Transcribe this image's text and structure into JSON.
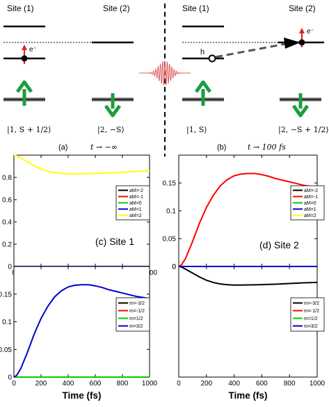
{
  "schematic": {
    "left": {
      "site1_label": "Site (1)",
      "site2_label": "Site (2)",
      "electron_label": "e⁻",
      "ket1_text": "|1, S + 1/2⟩",
      "ket2_text": "|2, −S⟩",
      "caption": "(a)",
      "time_text": "t → −∞"
    },
    "right": {
      "site1_label": "Site (1)",
      "site2_label": "Site (2)",
      "hole_label": "h",
      "electron_label": "e⁻",
      "ket1_text": "|1, S⟩",
      "ket2_text": "|2, −S + 1/2⟩",
      "caption": "(b)",
      "time_text": "t → 100 fs"
    },
    "colors": {
      "spin_arrow": "#1a9e3e",
      "electron_arrow": "#e02020",
      "pulse": "#e06060"
    }
  },
  "chart_data": [
    {
      "id": "site1-top",
      "type": "line",
      "annotation": "(c) Site 1",
      "xlim": [
        0,
        1000
      ],
      "ylim": [
        0,
        1.0
      ],
      "xticks": [
        "0",
        "200",
        "400",
        "600",
        "800",
        "1000"
      ],
      "yticks": [
        "0",
        "0.2",
        "0.4",
        "0.6",
        "0.8"
      ],
      "x": [
        0,
        20,
        50,
        100,
        150,
        200,
        250,
        300,
        350,
        400,
        450,
        500,
        550,
        600,
        650,
        700,
        750,
        800,
        850,
        900,
        950,
        1000
      ],
      "series": [
        {
          "name": "aM=-2",
          "color": "#000000",
          "values": [
            0,
            0,
            0,
            0,
            0,
            0,
            0,
            0,
            0,
            0,
            0,
            0,
            0,
            0,
            0,
            0,
            0,
            0,
            0,
            0,
            0,
            0
          ]
        },
        {
          "name": "aM=-1",
          "color": "#ff0000",
          "values": [
            0,
            0,
            0,
            0,
            0,
            0,
            0,
            0,
            0,
            0,
            0,
            0,
            0,
            0,
            0,
            0,
            0,
            0,
            0,
            0,
            0,
            0
          ]
        },
        {
          "name": "aM=0",
          "color": "#00cc00",
          "values": [
            0,
            0,
            0,
            0,
            0,
            0,
            0,
            0,
            0,
            0,
            0,
            0,
            0,
            0,
            0,
            0,
            0,
            0,
            0,
            0,
            0,
            0
          ]
        },
        {
          "name": "aM=1",
          "color": "#0000cc",
          "values": [
            0,
            0,
            0,
            0,
            0,
            0,
            0,
            0,
            0,
            0,
            0,
            0,
            0,
            0,
            0,
            0,
            0,
            0,
            0,
            0,
            0,
            0
          ]
        },
        {
          "name": "aM=2",
          "color": "#ffff00",
          "values": [
            1.0,
            0.995,
            0.975,
            0.94,
            0.905,
            0.875,
            0.855,
            0.842,
            0.835,
            0.832,
            0.832,
            0.833,
            0.834,
            0.836,
            0.838,
            0.84,
            0.843,
            0.846,
            0.85,
            0.853,
            0.856,
            0.86
          ]
        }
      ]
    },
    {
      "id": "site2-top",
      "type": "line",
      "annotation": "(d) Site 2",
      "xlim": [
        0,
        1000
      ],
      "ylim": [
        0,
        0.2
      ],
      "xticks": [
        "0",
        "200",
        "400",
        "600",
        "800",
        "1000"
      ],
      "yticks": [
        "0",
        "0.05",
        "0.1",
        "0.15"
      ],
      "x": [
        0,
        20,
        50,
        100,
        150,
        200,
        250,
        300,
        350,
        400,
        450,
        500,
        550,
        600,
        650,
        700,
        750,
        800,
        850,
        900,
        950,
        1000
      ],
      "series": [
        {
          "name": "aM=-2",
          "color": "#000000",
          "values": [
            0,
            0,
            0,
            0,
            0,
            0,
            0,
            0,
            0,
            0,
            0,
            0,
            0,
            0,
            0,
            0,
            0,
            0,
            0,
            0,
            0,
            0
          ]
        },
        {
          "name": "aM=-1",
          "color": "#ff0000",
          "values": [
            0,
            0.003,
            0.015,
            0.045,
            0.078,
            0.106,
            0.128,
            0.145,
            0.156,
            0.163,
            0.166,
            0.167,
            0.167,
            0.165,
            0.162,
            0.158,
            0.155,
            0.152,
            0.149,
            0.146,
            0.144,
            0.142
          ]
        },
        {
          "name": "aM=0",
          "color": "#00cc00",
          "values": [
            0,
            0,
            0,
            0,
            0,
            0,
            0,
            0,
            0,
            0,
            0,
            0,
            0,
            0,
            0,
            0,
            0,
            0,
            0,
            0,
            0,
            0
          ]
        },
        {
          "name": "aM=1",
          "color": "#0000cc",
          "values": [
            0,
            0,
            0,
            0,
            0,
            0,
            0,
            0,
            0,
            0,
            0,
            0,
            0,
            0,
            0,
            0,
            0,
            0,
            0,
            0,
            0,
            0
          ]
        },
        {
          "name": "aM=2",
          "color": "#ffff00",
          "values": [
            0,
            0,
            0,
            0,
            0,
            0,
            0,
            0,
            0,
            0,
            0,
            0,
            0,
            0,
            0,
            0,
            0,
            0,
            0,
            0,
            0,
            0
          ]
        }
      ]
    },
    {
      "id": "site1-bottom",
      "type": "line",
      "xlim": [
        0,
        1000
      ],
      "ylim": [
        0,
        0.2
      ],
      "xticks": [
        "0",
        "200",
        "400",
        "600",
        "800",
        "1000"
      ],
      "yticks": [
        "0",
        "0.05",
        "0.1",
        "0.15"
      ],
      "xlabel": "Time (fs)",
      "x": [
        0,
        20,
        50,
        100,
        150,
        200,
        250,
        300,
        350,
        400,
        450,
        500,
        550,
        600,
        650,
        700,
        750,
        800,
        850,
        900,
        950,
        1000
      ],
      "series": [
        {
          "name": "m=-3/2",
          "color": "#000000",
          "values": [
            0,
            0,
            0,
            0,
            0,
            0,
            0,
            0,
            0,
            0,
            0,
            0,
            0,
            0,
            0,
            0,
            0,
            0,
            0,
            0,
            0,
            0
          ]
        },
        {
          "name": "m=-1/2",
          "color": "#ff0000",
          "values": [
            0,
            0,
            0,
            0,
            0,
            0,
            0,
            0,
            0,
            0,
            0,
            0,
            0,
            0,
            0,
            0,
            0,
            0,
            0,
            0,
            0,
            0
          ]
        },
        {
          "name": "m=1/2",
          "color": "#00cc00",
          "values": [
            0,
            0,
            0,
            0,
            0,
            0,
            0,
            0,
            0,
            0,
            0,
            0,
            0,
            0,
            0,
            0,
            0,
            0,
            0,
            0,
            0,
            0
          ]
        },
        {
          "name": "m=3/2",
          "color": "#0000cc",
          "values": [
            0,
            0.003,
            0.015,
            0.045,
            0.078,
            0.106,
            0.128,
            0.145,
            0.156,
            0.163,
            0.166,
            0.167,
            0.167,
            0.165,
            0.162,
            0.158,
            0.155,
            0.152,
            0.149,
            0.146,
            0.144,
            0.142
          ]
        }
      ]
    },
    {
      "id": "site2-bottom",
      "type": "line",
      "xlim": [
        0,
        1000
      ],
      "ylim": [
        -1.0,
        0
      ],
      "xticks": [
        "0",
        "200",
        "400",
        "600",
        "800",
        "1000"
      ],
      "yticks": [
        "0"
      ],
      "xlabel": "Time (fs)",
      "x": [
        0,
        20,
        50,
        100,
        150,
        200,
        250,
        300,
        350,
        400,
        450,
        500,
        550,
        600,
        650,
        700,
        750,
        800,
        850,
        900,
        950,
        1000
      ],
      "series": [
        {
          "name": "m=-3/2",
          "color": "#000000",
          "values": [
            0,
            -0.005,
            -0.025,
            -0.06,
            -0.095,
            -0.125,
            -0.145,
            -0.158,
            -0.165,
            -0.168,
            -0.168,
            -0.167,
            -0.166,
            -0.164,
            -0.162,
            -0.16,
            -0.157,
            -0.154,
            -0.151,
            -0.148,
            -0.146,
            -0.144
          ]
        },
        {
          "name": "m=-1/2",
          "color": "#ff0000",
          "values": [
            0,
            0,
            0,
            0,
            0,
            0,
            0,
            0,
            0,
            0,
            0,
            0,
            0,
            0,
            0,
            0,
            0,
            0,
            0,
            0,
            0,
            0
          ]
        },
        {
          "name": "m=1/2",
          "color": "#00cc00",
          "values": [
            0,
            0,
            0,
            0,
            0,
            0,
            0,
            0,
            0,
            0,
            0,
            0,
            0,
            0,
            0,
            0,
            0,
            0,
            0,
            0,
            0,
            0
          ]
        },
        {
          "name": "m=3/2",
          "color": "#0000cc",
          "values": [
            0,
            0,
            0,
            0,
            0,
            0,
            0,
            0,
            0,
            0,
            0,
            0,
            0,
            0,
            0,
            0,
            0,
            0,
            0,
            0,
            0,
            0
          ]
        }
      ]
    }
  ]
}
